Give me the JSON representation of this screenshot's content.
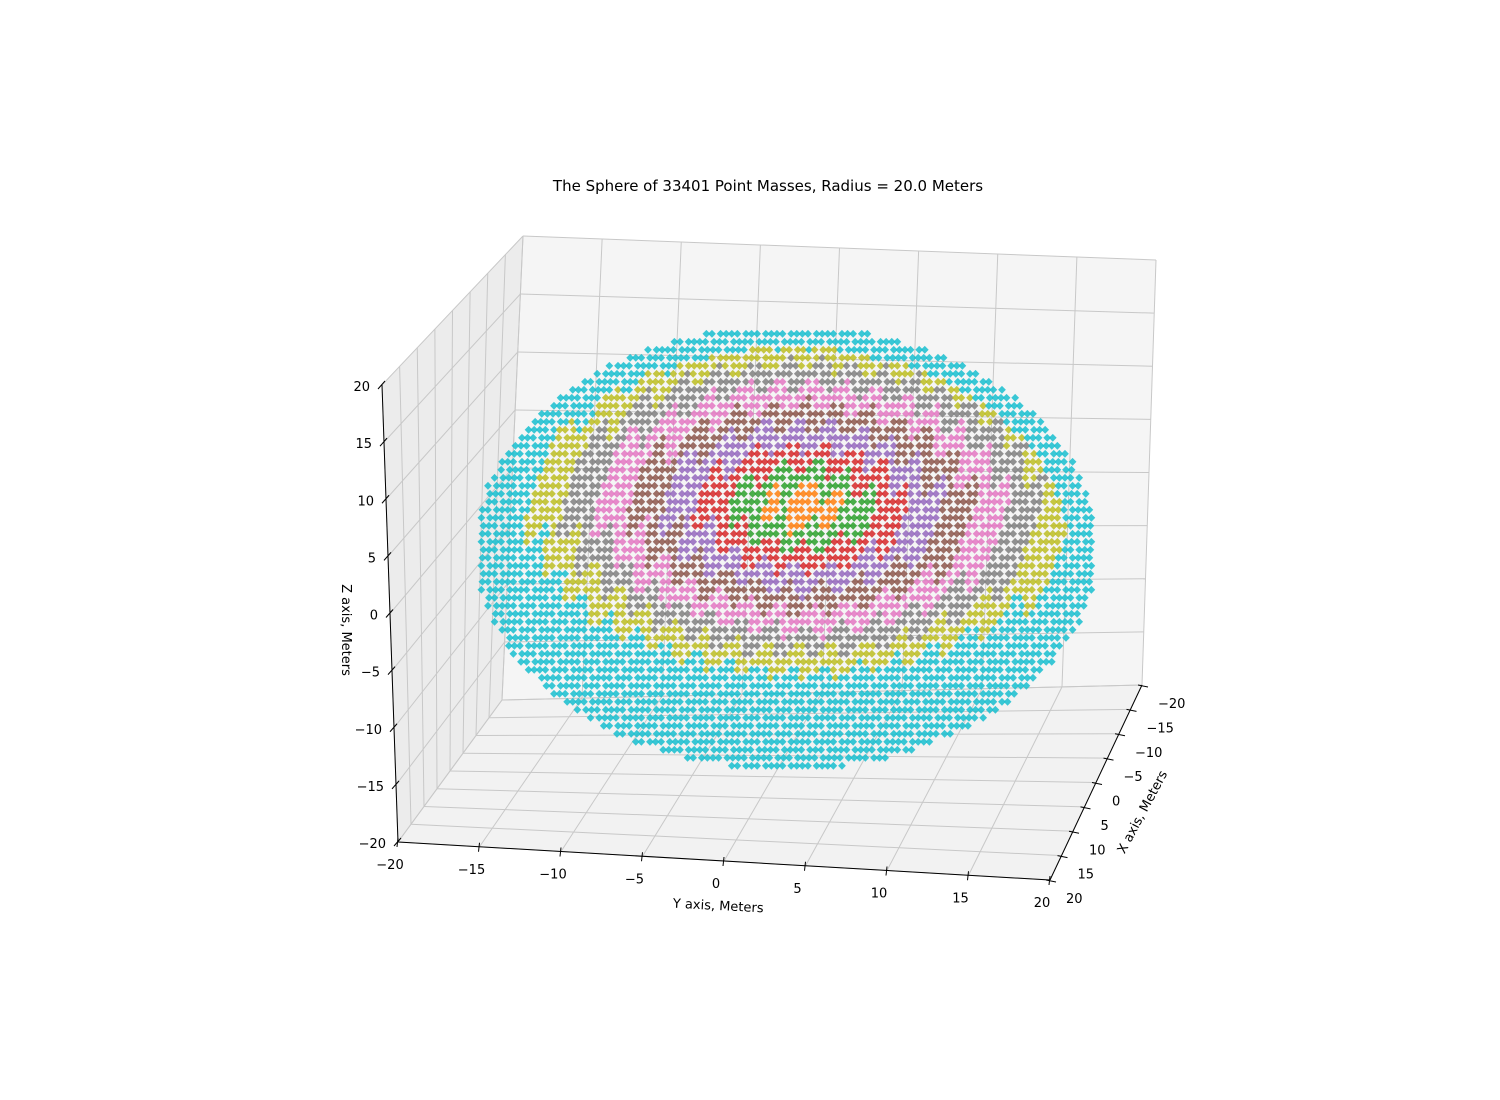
{
  "chart_data": {
    "type": "scatter",
    "projection": "3d",
    "title": "The Sphere of 33401 Point Masses, Radius = 20.0 Meters",
    "xlabel": "X axis, Meters",
    "ylabel": "Y axis, Meters",
    "zlabel": "Z axis, Meters",
    "xlim": [
      -20,
      20
    ],
    "ylim": [
      -20,
      20
    ],
    "zlim": [
      -20,
      20
    ],
    "x_ticks": [
      "−20",
      "−15",
      "−10",
      "−5",
      "0",
      "5",
      "10",
      "15",
      "20"
    ],
    "y_ticks": [
      "−20",
      "−15",
      "−10",
      "−5",
      "0",
      "5",
      "10",
      "15",
      "20"
    ],
    "z_ticks": [
      "−20",
      "−15",
      "−10",
      "−5",
      "0",
      "5",
      "10",
      "15",
      "20"
    ],
    "grid": true,
    "legend": "none",
    "point_count": 33401,
    "radius": 20.0,
    "view": {
      "elevation": 15,
      "azimuth": 10
    },
    "shell_colors": [
      "#ff7f0e",
      "#2ca02c",
      "#d62728",
      "#9467bd",
      "#8c564b",
      "#e377c2",
      "#7f7f7f",
      "#bcbd22",
      "#17becf"
    ],
    "pane_color": "#f2f2f2",
    "grid_color": "#c8c8c8"
  }
}
